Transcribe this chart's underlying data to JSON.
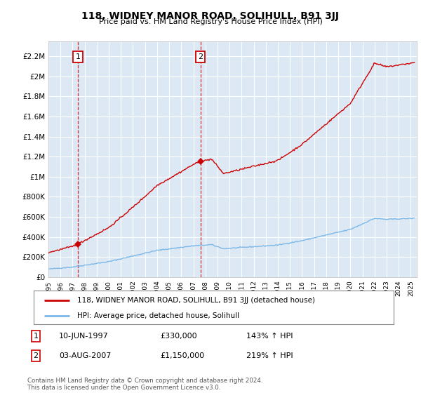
{
  "title": "118, WIDNEY MANOR ROAD, SOLIHULL, B91 3JJ",
  "subtitle": "Price paid vs. HM Land Registry's House Price Index (HPI)",
  "ylim": [
    0,
    2350000
  ],
  "yticks": [
    0,
    200000,
    400000,
    600000,
    800000,
    1000000,
    1200000,
    1400000,
    1600000,
    1800000,
    2000000,
    2200000
  ],
  "ytick_labels": [
    "£0",
    "£200K",
    "£400K",
    "£600K",
    "£800K",
    "£1M",
    "£1.2M",
    "£1.4M",
    "£1.6M",
    "£1.8M",
    "£2M",
    "£2.2M"
  ],
  "xlim_start": 1995.0,
  "xlim_end": 2025.5,
  "xticks": [
    1995,
    1996,
    1997,
    1998,
    1999,
    2000,
    2001,
    2002,
    2003,
    2004,
    2005,
    2006,
    2007,
    2008,
    2009,
    2010,
    2011,
    2012,
    2013,
    2014,
    2015,
    2016,
    2017,
    2018,
    2019,
    2020,
    2021,
    2022,
    2023,
    2024,
    2025
  ],
  "background_color": "#ffffff",
  "plot_bg_color": "#dce9f5",
  "grid_color": "#ffffff",
  "hpi_color": "#7bb8e8",
  "price_color": "#cc0000",
  "sale1_x": 1997.44,
  "sale1_y": 330000,
  "sale2_x": 2007.58,
  "sale2_y": 1150000,
  "legend_line1": "118, WIDNEY MANOR ROAD, SOLIHULL, B91 3JJ (detached house)",
  "legend_line2": "HPI: Average price, detached house, Solihull",
  "annotation1_label": "1",
  "annotation1_date": "10-JUN-1997",
  "annotation1_price": "£330,000",
  "annotation1_hpi": "143% ↑ HPI",
  "annotation2_label": "2",
  "annotation2_date": "03-AUG-2007",
  "annotation2_price": "£1,150,000",
  "annotation2_hpi": "219% ↑ HPI",
  "footer": "Contains HM Land Registry data © Crown copyright and database right 2024.\nThis data is licensed under the Open Government Licence v3.0."
}
